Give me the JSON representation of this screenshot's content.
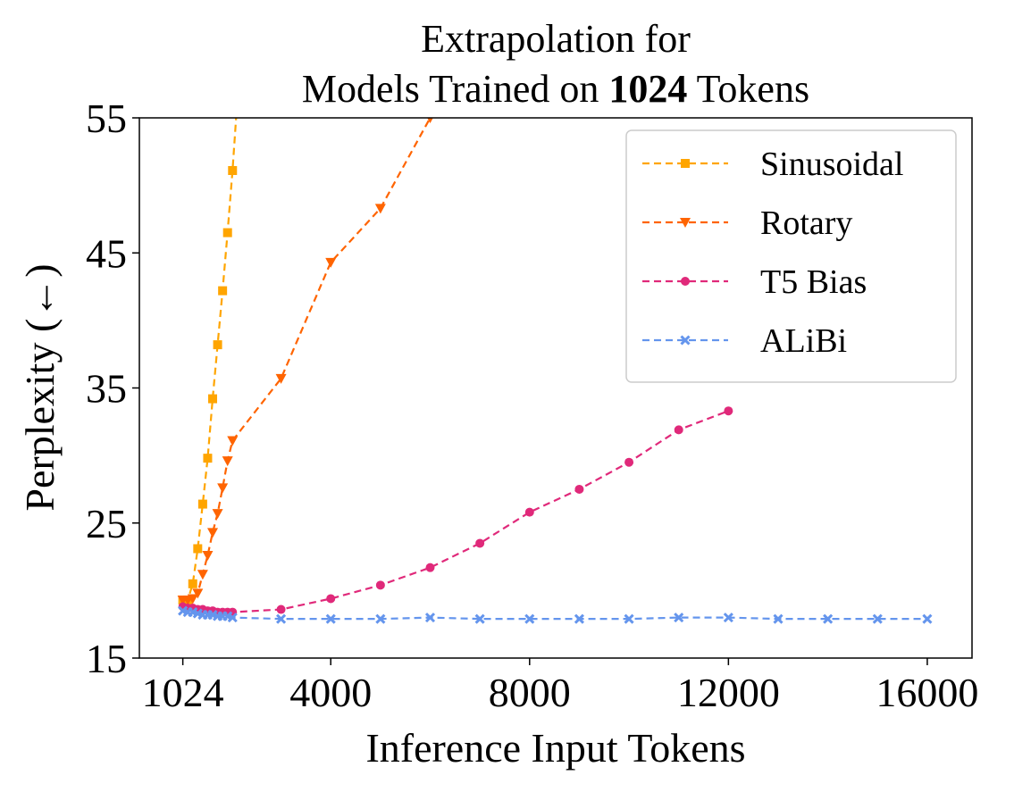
{
  "chart_data": {
    "type": "line",
    "title_line1": "Extrapolation for",
    "title_line2_prefix": "Models Trained on ",
    "title_line2_bold": "1024",
    "title_line2_suffix": " Tokens",
    "xlabel": "Inference Input Tokens",
    "ylabel": "Perplexity (←)",
    "xlim": [
      150,
      16900
    ],
    "ylim": [
      15,
      55
    ],
    "xticks": [
      1024,
      4000,
      8000,
      12000,
      16000
    ],
    "xtick_labels": [
      "1024",
      "4000",
      "8000",
      "12000",
      "16000"
    ],
    "yticks": [
      15,
      25,
      35,
      45,
      55
    ],
    "ytick_labels": [
      "15",
      "25",
      "35",
      "45",
      "55"
    ],
    "grid": false,
    "legend_position": "top-right",
    "series": [
      {
        "name": "Sinusoidal",
        "color": "#ffa500",
        "marker": "square",
        "x": [
          1024,
          1124,
          1224,
          1324,
          1424,
          1524,
          1624,
          1724,
          1824,
          1924,
          2024,
          2124
        ],
        "y": [
          19.3,
          19.3,
          20.5,
          23.1,
          26.4,
          29.8,
          34.2,
          38.2,
          42.2,
          46.5,
          51.1,
          56.5
        ]
      },
      {
        "name": "Rotary",
        "color": "#ff6400",
        "marker": "triangle-down",
        "x": [
          1024,
          1124,
          1224,
          1324,
          1424,
          1524,
          1624,
          1724,
          1824,
          1924,
          2024,
          3000,
          4000,
          5000,
          6000
        ],
        "y": [
          19.3,
          19.3,
          19.4,
          19.8,
          21.2,
          22.6,
          24.3,
          25.7,
          27.6,
          29.6,
          31.1,
          35.7,
          44.3,
          48.3,
          55.0
        ]
      },
      {
        "name": "T5 Bias",
        "color": "#e0297a",
        "marker": "circle",
        "x": [
          1024,
          1124,
          1224,
          1324,
          1424,
          1524,
          1624,
          1724,
          1824,
          1924,
          2024,
          3000,
          4000,
          5000,
          6000,
          7000,
          8000,
          9000,
          10000,
          11000,
          12000
        ],
        "y": [
          18.8,
          18.7,
          18.7,
          18.6,
          18.6,
          18.5,
          18.5,
          18.4,
          18.4,
          18.4,
          18.4,
          18.6,
          19.4,
          20.4,
          21.7,
          23.5,
          25.8,
          27.5,
          29.5,
          31.9,
          33.3
        ]
      },
      {
        "name": "ALiBi",
        "color": "#6495ed",
        "marker": "x",
        "x": [
          1024,
          1124,
          1224,
          1324,
          1424,
          1524,
          1624,
          1724,
          1824,
          1924,
          2024,
          3000,
          4000,
          5000,
          6000,
          7000,
          8000,
          9000,
          10000,
          11000,
          12000,
          13000,
          14000,
          15000,
          16000
        ],
        "y": [
          18.5,
          18.4,
          18.4,
          18.3,
          18.2,
          18.2,
          18.2,
          18.1,
          18.1,
          18.1,
          18.0,
          17.9,
          17.9,
          17.9,
          18.0,
          17.9,
          17.9,
          17.9,
          17.9,
          18.0,
          18.0,
          17.9,
          17.9,
          17.9,
          17.9
        ]
      }
    ]
  }
}
